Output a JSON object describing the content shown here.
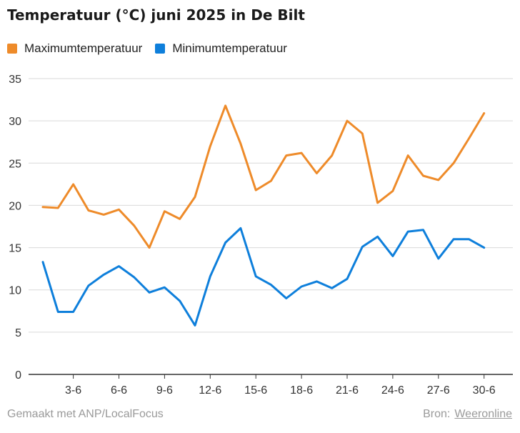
{
  "title": "Temperatuur (°C) juni 2025 in De Bilt",
  "colors": {
    "max": "#ee8b2a",
    "min": "#0e7fdb",
    "grid": "#d9d9d9",
    "axis": "#333333",
    "tick_text": "#333333"
  },
  "footer": {
    "made_with": "Gemaakt met ANP/LocalFocus",
    "source_label": "Bron:",
    "source_link": "Weeronline"
  },
  "chart_data": {
    "type": "line",
    "title": "Temperatuur (°C) juni 2025 in De Bilt",
    "x": [
      1,
      2,
      3,
      4,
      5,
      6,
      7,
      8,
      9,
      10,
      11,
      12,
      13,
      14,
      15,
      16,
      17,
      18,
      19,
      20,
      21,
      22,
      23,
      24,
      25,
      26,
      27,
      28,
      29,
      30
    ],
    "xticks": [
      3,
      6,
      9,
      12,
      15,
      18,
      21,
      24,
      27,
      30
    ],
    "xtick_labels": [
      "3-6",
      "6-6",
      "9-6",
      "12-6",
      "15-6",
      "18-6",
      "21-6",
      "24-6",
      "27-6",
      "30-6"
    ],
    "ylim": [
      0,
      35
    ],
    "yticks": [
      0,
      5,
      10,
      15,
      20,
      25,
      30,
      35
    ],
    "grid": true,
    "legend": "top-left",
    "series": [
      {
        "name": "Maximumtemperatuur",
        "color": "#ee8b2a",
        "values": [
          19.8,
          19.7,
          22.5,
          19.4,
          18.9,
          19.5,
          17.6,
          15.0,
          19.3,
          18.4,
          21.0,
          27.0,
          31.8,
          27.3,
          21.8,
          22.9,
          25.9,
          26.2,
          23.8,
          25.9,
          30.0,
          28.5,
          20.3,
          21.7,
          25.9,
          23.5,
          23.0,
          25.0,
          27.9,
          30.9
        ]
      },
      {
        "name": "Minimumtemperatuur",
        "color": "#0e7fdb",
        "values": [
          13.3,
          7.4,
          7.4,
          10.5,
          11.8,
          12.8,
          11.5,
          9.7,
          10.3,
          8.7,
          5.8,
          11.6,
          15.6,
          17.3,
          11.6,
          10.6,
          9.0,
          10.4,
          11.0,
          10.2,
          11.3,
          15.1,
          16.3,
          14.0,
          16.9,
          17.1,
          13.7,
          16.0,
          16.0,
          15.0
        ]
      }
    ]
  }
}
